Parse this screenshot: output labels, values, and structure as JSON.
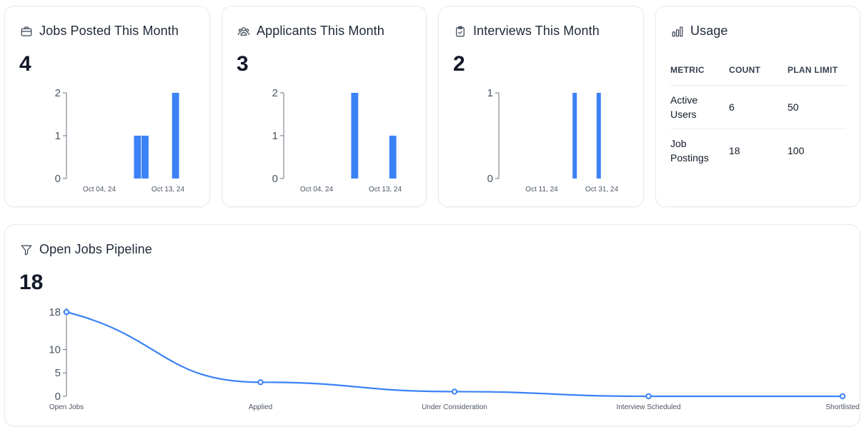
{
  "colors": {
    "accent": "#3b82f6",
    "axis": "#6b7280",
    "text": "#111827",
    "border": "#e8eaee"
  },
  "cards": {
    "jobs": {
      "title": "Jobs Posted This Month",
      "icon": "briefcase-icon",
      "value": "4"
    },
    "applicants": {
      "title": "Applicants This Month",
      "icon": "users-icon",
      "value": "3"
    },
    "interviews": {
      "title": "Interviews This Month",
      "icon": "clipboard-icon",
      "value": "2"
    }
  },
  "usage": {
    "title": "Usage",
    "icon": "bar-chart-icon",
    "headers": [
      "METRIC",
      "COUNT",
      "PLAN LIMIT"
    ],
    "rows": [
      {
        "metric_line1": "Active",
        "metric_line2": "Users",
        "count": "6",
        "limit": "50"
      },
      {
        "metric_line1": "Job",
        "metric_line2": "Postings",
        "count": "18",
        "limit": "100"
      }
    ]
  },
  "pipeline": {
    "title": "Open Jobs Pipeline",
    "icon": "funnel-icon",
    "value": "18"
  },
  "chart_data": [
    {
      "type": "bar",
      "title": "Jobs Posted This Month",
      "x_tick_labels": [
        "Oct 04, 24",
        "Oct 13, 24"
      ],
      "y_ticks": [
        0,
        1,
        2
      ],
      "ylim": [
        0,
        2
      ],
      "bars": [
        {
          "x": "Oct 09, 24",
          "value": 1
        },
        {
          "x": "Oct 10, 24",
          "value": 1
        },
        {
          "x": "Oct 14, 24",
          "value": 2
        }
      ],
      "color": "#3b82f6"
    },
    {
      "type": "bar",
      "title": "Applicants This Month",
      "x_tick_labels": [
        "Oct 04, 24",
        "Oct 13, 24"
      ],
      "y_ticks": [
        0,
        1,
        2
      ],
      "ylim": [
        0,
        2
      ],
      "bars": [
        {
          "x": "Oct 09, 24",
          "value": 2
        },
        {
          "x": "Oct 14, 24",
          "value": 1
        }
      ],
      "color": "#3b82f6"
    },
    {
      "type": "bar",
      "title": "Interviews This Month",
      "x_tick_labels": [
        "Oct 11, 24",
        "Oct 31, 24"
      ],
      "y_ticks": [
        0,
        1
      ],
      "ylim": [
        0,
        1
      ],
      "bars": [
        {
          "x": "Oct 22, 24",
          "value": 1
        },
        {
          "x": "Oct 30, 24",
          "value": 1
        }
      ],
      "color": "#3b82f6"
    },
    {
      "type": "line",
      "title": "Open Jobs Pipeline",
      "categories": [
        "Open Jobs",
        "Applied",
        "Under Consideration",
        "Interview Scheduled",
        "Shortlisted"
      ],
      "values": [
        18,
        3,
        1,
        0,
        0
      ],
      "y_ticks": [
        0,
        5,
        10,
        18
      ],
      "ylim": [
        0,
        18
      ],
      "color": "#3b82f6"
    }
  ]
}
